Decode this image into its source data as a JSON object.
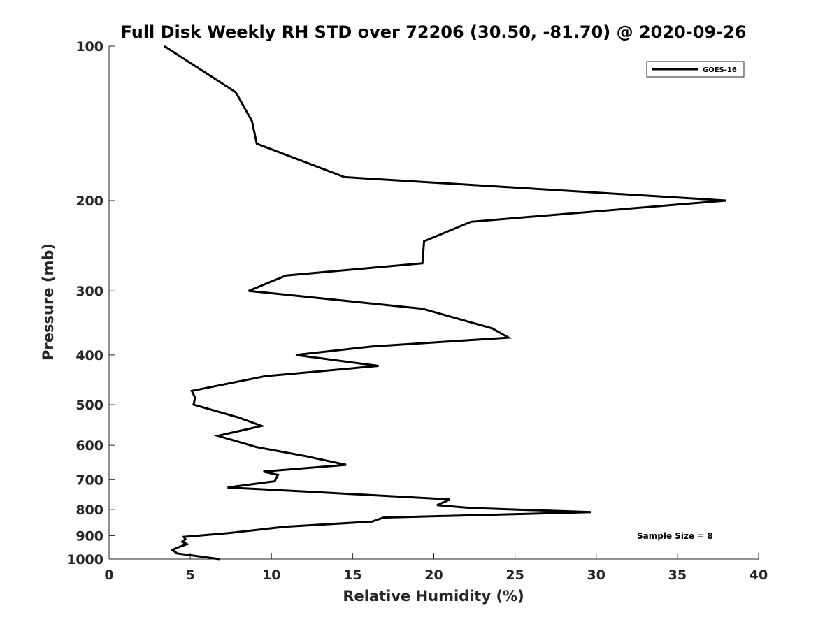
{
  "chart_data": {
    "type": "line",
    "title": "Full Disk Weekly RH STD over 72206 (30.50, -81.70) @ 2020-09-26",
    "xlabel": "Relative Humidity (%)",
    "ylabel": "Pressure (mb)",
    "xlim": [
      0,
      40
    ],
    "ylim": [
      100,
      1000
    ],
    "yscale": "log",
    "y_reversed": true,
    "x_ticks": [
      "0",
      "5",
      "10",
      "15",
      "20",
      "25",
      "30",
      "35",
      "40"
    ],
    "y_ticks": [
      "100",
      "200",
      "300",
      "400",
      "500",
      "600",
      "700",
      "800",
      "900",
      "1000"
    ],
    "legend_position": "top-right",
    "grid": false,
    "series": [
      {
        "name": "GOES-16",
        "color": "#000000",
        "x": [
          3.4,
          7.8,
          8.8,
          9.1,
          14.5,
          38.0,
          22.3,
          19.4,
          19.3,
          10.9,
          8.6,
          19.3,
          23.6,
          24.6,
          16.2,
          11.5,
          16.6,
          9.6,
          5.1,
          5.3,
          5.2,
          8.0,
          9.4,
          6.7,
          9.1,
          12.1,
          14.6,
          9.5,
          10.4,
          10.2,
          7.3,
          12.7,
          21.0,
          20.2,
          22.3,
          29.7,
          16.9,
          16.2,
          10.8,
          7.3,
          4.6,
          4.7,
          4.5,
          4.8,
          4.2,
          3.9,
          4.2,
          6.8
        ],
        "y": [
          100,
          123,
          140,
          155,
          180,
          200,
          220,
          240,
          265,
          280,
          300,
          325,
          355,
          370,
          385,
          400,
          420,
          440,
          470,
          485,
          500,
          530,
          550,
          575,
          605,
          630,
          655,
          675,
          685,
          705,
          725,
          740,
          765,
          785,
          795,
          810,
          830,
          845,
          865,
          890,
          905,
          915,
          925,
          935,
          950,
          960,
          975,
          1000
        ]
      }
    ],
    "annotations": [
      "Sample Size = 8"
    ]
  }
}
